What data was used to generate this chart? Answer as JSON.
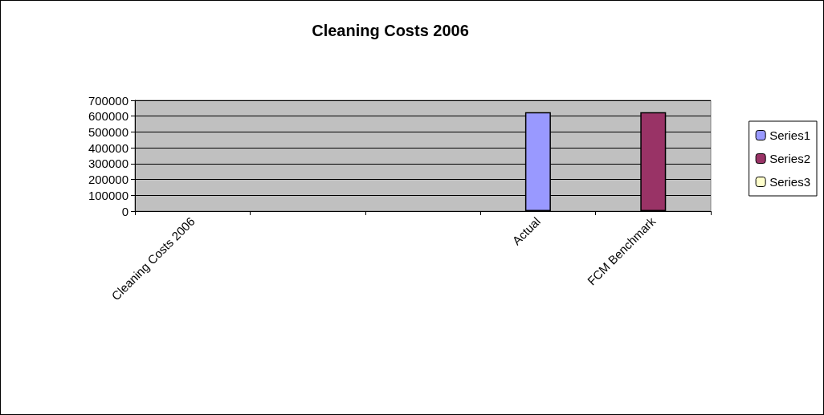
{
  "chart_data": {
    "type": "bar",
    "title": "Cleaning Costs 2006",
    "categories": [
      "Cleaning Costs 2006",
      null,
      null,
      "Actual",
      "FCM Benchmark"
    ],
    "series": [
      {
        "name": "Series1",
        "color": "#9999ff",
        "values": [
          null,
          null,
          null,
          625000,
          null
        ]
      },
      {
        "name": "Series2",
        "color": "#993366",
        "values": [
          null,
          null,
          null,
          null,
          625000
        ]
      },
      {
        "name": "Series3",
        "color": "#ffffcc",
        "values": [
          null,
          null,
          null,
          null,
          null
        ]
      }
    ],
    "ylim": [
      0,
      700000
    ],
    "yticks": [
      0,
      100000,
      200000,
      300000,
      400000,
      500000,
      600000,
      700000
    ],
    "grid": "y",
    "legend": "right"
  }
}
